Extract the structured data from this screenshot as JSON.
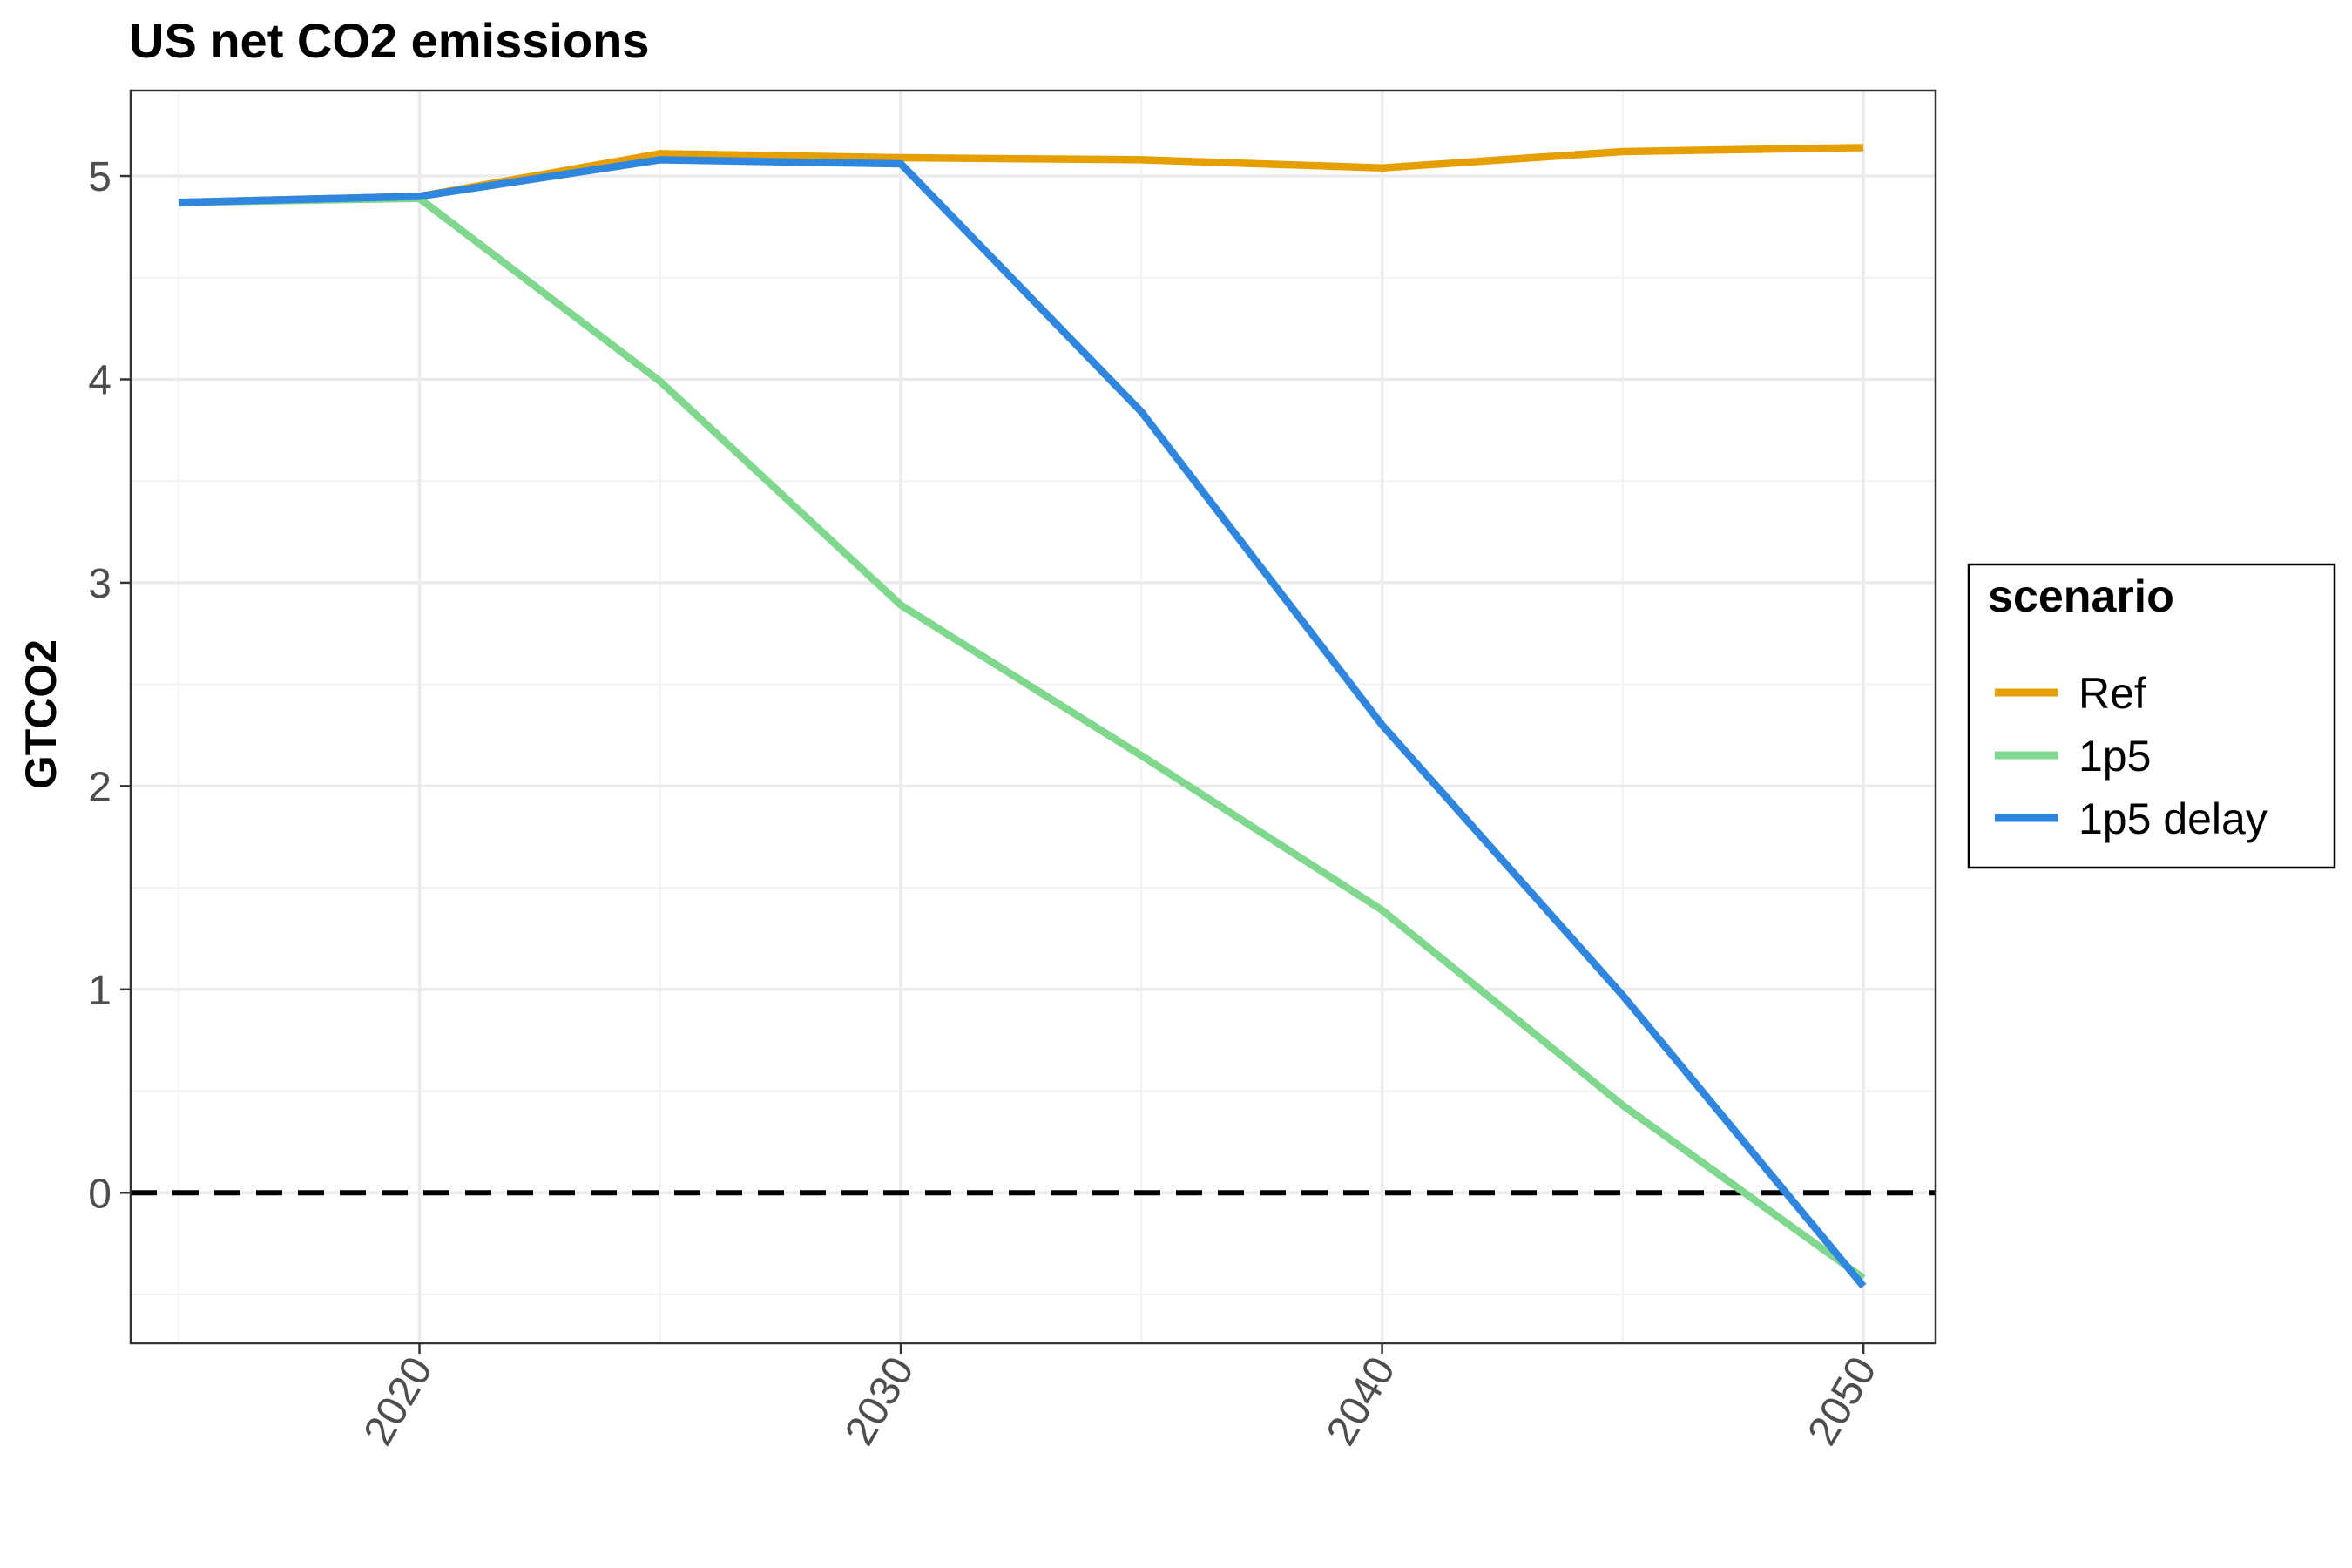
{
  "chart_data": {
    "type": "line",
    "title": "US net CO2 emissions",
    "xlabel": "",
    "ylabel": "GTCO2",
    "x": [
      2015,
      2020,
      2025,
      2030,
      2035,
      2040,
      2045,
      2050
    ],
    "xlim": [
      2014,
      2051.5
    ],
    "ylim": [
      -0.74,
      5.42
    ],
    "x_ticks": [
      "2020",
      "2030",
      "2040",
      "2050"
    ],
    "y_ticks": [
      "0",
      "1",
      "2",
      "3",
      "4",
      "5"
    ],
    "grid": true,
    "reference_line": {
      "y": 0,
      "style": "dashed",
      "color": "#000000"
    },
    "legend": {
      "title": "scenario",
      "position": "right"
    },
    "series": [
      {
        "name": "Ref",
        "color": "#E69F00",
        "values": [
          4.87,
          4.9,
          5.11,
          5.09,
          5.08,
          5.04,
          5.12,
          5.14
        ]
      },
      {
        "name": "1p5",
        "color": "#7FD88E",
        "values": [
          4.87,
          4.89,
          3.99,
          2.89,
          2.15,
          1.39,
          0.43,
          -0.42
        ]
      },
      {
        "name": "1p5 delay",
        "color": "#2E86DE",
        "values": [
          4.87,
          4.9,
          5.08,
          5.06,
          3.84,
          2.3,
          0.97,
          -0.46
        ]
      }
    ]
  }
}
